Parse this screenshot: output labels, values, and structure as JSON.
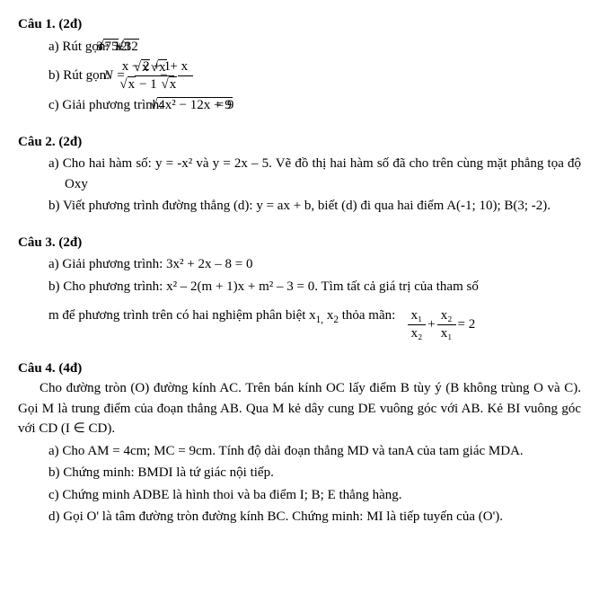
{
  "q1": {
    "title": "Câu 1. (2đ)",
    "a_label": "a)",
    "a_text": "Rút gọn:",
    "a_expr_1": "3",
    "a_expr_sqrt1": "75",
    "a_expr_2": " − 12",
    "a_expr_sqrt2": "3",
    "a_expr_3": " + ",
    "a_expr_sqrt3": "12",
    "b_label": "b)",
    "b_text": "Rút gọn:",
    "b_N": "N =",
    "b_f1_num_1": "x − 2",
    "b_f1_num_sqrt": "x",
    "b_f1_num_2": " + 1",
    "b_f1_den_sqrt": "x",
    "b_f1_den_2": " − 1",
    "b_minus": " − ",
    "b_f2_num_sqrt": "x",
    "b_f2_num_2": " + x",
    "b_f2_den_sqrt": "x",
    "c_label": "c)",
    "c_text": "Giải phương trình:",
    "c_sqrt": "4x² − 12x + 9",
    "c_eq": " = 9"
  },
  "q2": {
    "title": "Câu 2. (2đ)",
    "a_label": "a)",
    "a_text": "Cho hai hàm số: y = -x² và  y = 2x – 5. Vẽ đồ thị hai hàm số đã cho trên cùng mặt phẳng tọa độ Oxy",
    "b_label": "b)",
    "b_text": "Viết phương trình đường thẳng (d): y = ax + b, biết (d) đi qua hai điểm A(-1; 10); B(3; -2)."
  },
  "q3": {
    "title": "Câu 3. (2đ)",
    "a_label": "a)",
    "a_text": "Giải phương trình: 3x² + 2x – 8 = 0",
    "b_label": "b)",
    "b_text1": "Cho phương trình: x² – 2(m + 1)x + m² – 3 = 0. Tìm tất cả giá trị của tham số",
    "b_text2": "m để phương trình trên có hai nghiệm phân biệt x",
    "b_sub1": "1,",
    "b_text3": " x",
    "b_sub2": "2",
    "b_text4": " thỏa mãn:",
    "b_f1_num": "x₁",
    "b_f1_den": "x₂",
    "b_plus": " + ",
    "b_f2_num": "x₂",
    "b_f2_den": "x₁",
    "b_eq": " = 2"
  },
  "q4": {
    "title": "Câu 4. (4đ)",
    "intro": "Cho đường tròn (O) đường kính AC. Trên bán kính OC lấy điểm B tùy ý (B không trùng O và C). Gọi M là trung điểm của đoạn thẳng AB. Qua M kẻ dây cung DE vuông góc với AB. Kẻ BI vuông góc với CD (I ∈ CD).",
    "a_label": "a)",
    "a_text": "Cho AM = 4cm; MC = 9cm. Tính độ dài đoạn thẳng MD và tanA của tam giác MDA.",
    "b_label": "b)",
    "b_text": "Chứng minh: BMDI là tứ giác nội tiếp.",
    "c_label": "c)",
    "c_text": "Chứng minh ADBE là hình thoi và ba điểm I; B; E thẳng hàng.",
    "d_label": "d)",
    "d_text": "Gọi O' là tâm đường tròn đường kính BC. Chứng minh: MI là tiếp tuyến của (O')."
  }
}
